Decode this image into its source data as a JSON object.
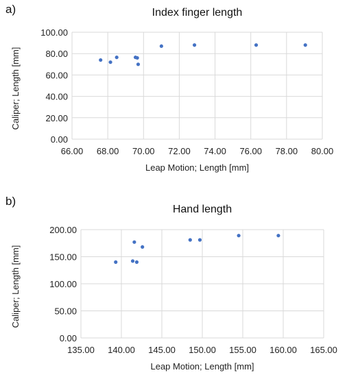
{
  "panels": [
    {
      "letter": "a)",
      "chart_data": {
        "type": "scatter",
        "title": "Index finger length",
        "xlabel": "Leap Motion; Length [mm]",
        "ylabel": "Caliper; Length [mm]",
        "xlim": [
          66,
          80
        ],
        "ylim": [
          0,
          100
        ],
        "xticks": [
          "66.00",
          "68.00",
          "70.00",
          "72.00",
          "74.00",
          "76.00",
          "78.00",
          "80.00"
        ],
        "yticks": [
          "0.00",
          "20.00",
          "40.00",
          "60.00",
          "80.00",
          "100.00"
        ],
        "grid": true,
        "points": [
          {
            "x": 67.6,
            "y": 74
          },
          {
            "x": 68.15,
            "y": 72
          },
          {
            "x": 68.5,
            "y": 76.5
          },
          {
            "x": 69.55,
            "y": 76.5
          },
          {
            "x": 69.65,
            "y": 76
          },
          {
            "x": 69.7,
            "y": 70
          },
          {
            "x": 71.0,
            "y": 87
          },
          {
            "x": 72.85,
            "y": 88
          },
          {
            "x": 76.3,
            "y": 88
          },
          {
            "x": 79.05,
            "y": 88
          }
        ]
      }
    },
    {
      "letter": "b)",
      "chart_data": {
        "type": "scatter",
        "title": "Hand length",
        "xlabel": "Leap Motion; Length [mm]",
        "ylabel": "Caliper; Length [mm]",
        "xlim": [
          135,
          165
        ],
        "ylim": [
          0,
          200
        ],
        "xticks": [
          "135.00",
          "140.00",
          "145.00",
          "150.00",
          "155.00",
          "160.00",
          "165.00"
        ],
        "yticks": [
          "0.00",
          "50.00",
          "100.00",
          "150.00",
          "200.00"
        ],
        "grid": true,
        "points": [
          {
            "x": 139.3,
            "y": 140
          },
          {
            "x": 141.4,
            "y": 142
          },
          {
            "x": 141.6,
            "y": 177
          },
          {
            "x": 141.9,
            "y": 140
          },
          {
            "x": 142.6,
            "y": 168
          },
          {
            "x": 148.5,
            "y": 181
          },
          {
            "x": 149.7,
            "y": 181
          },
          {
            "x": 154.5,
            "y": 189
          },
          {
            "x": 159.4,
            "y": 189
          }
        ]
      }
    }
  ]
}
